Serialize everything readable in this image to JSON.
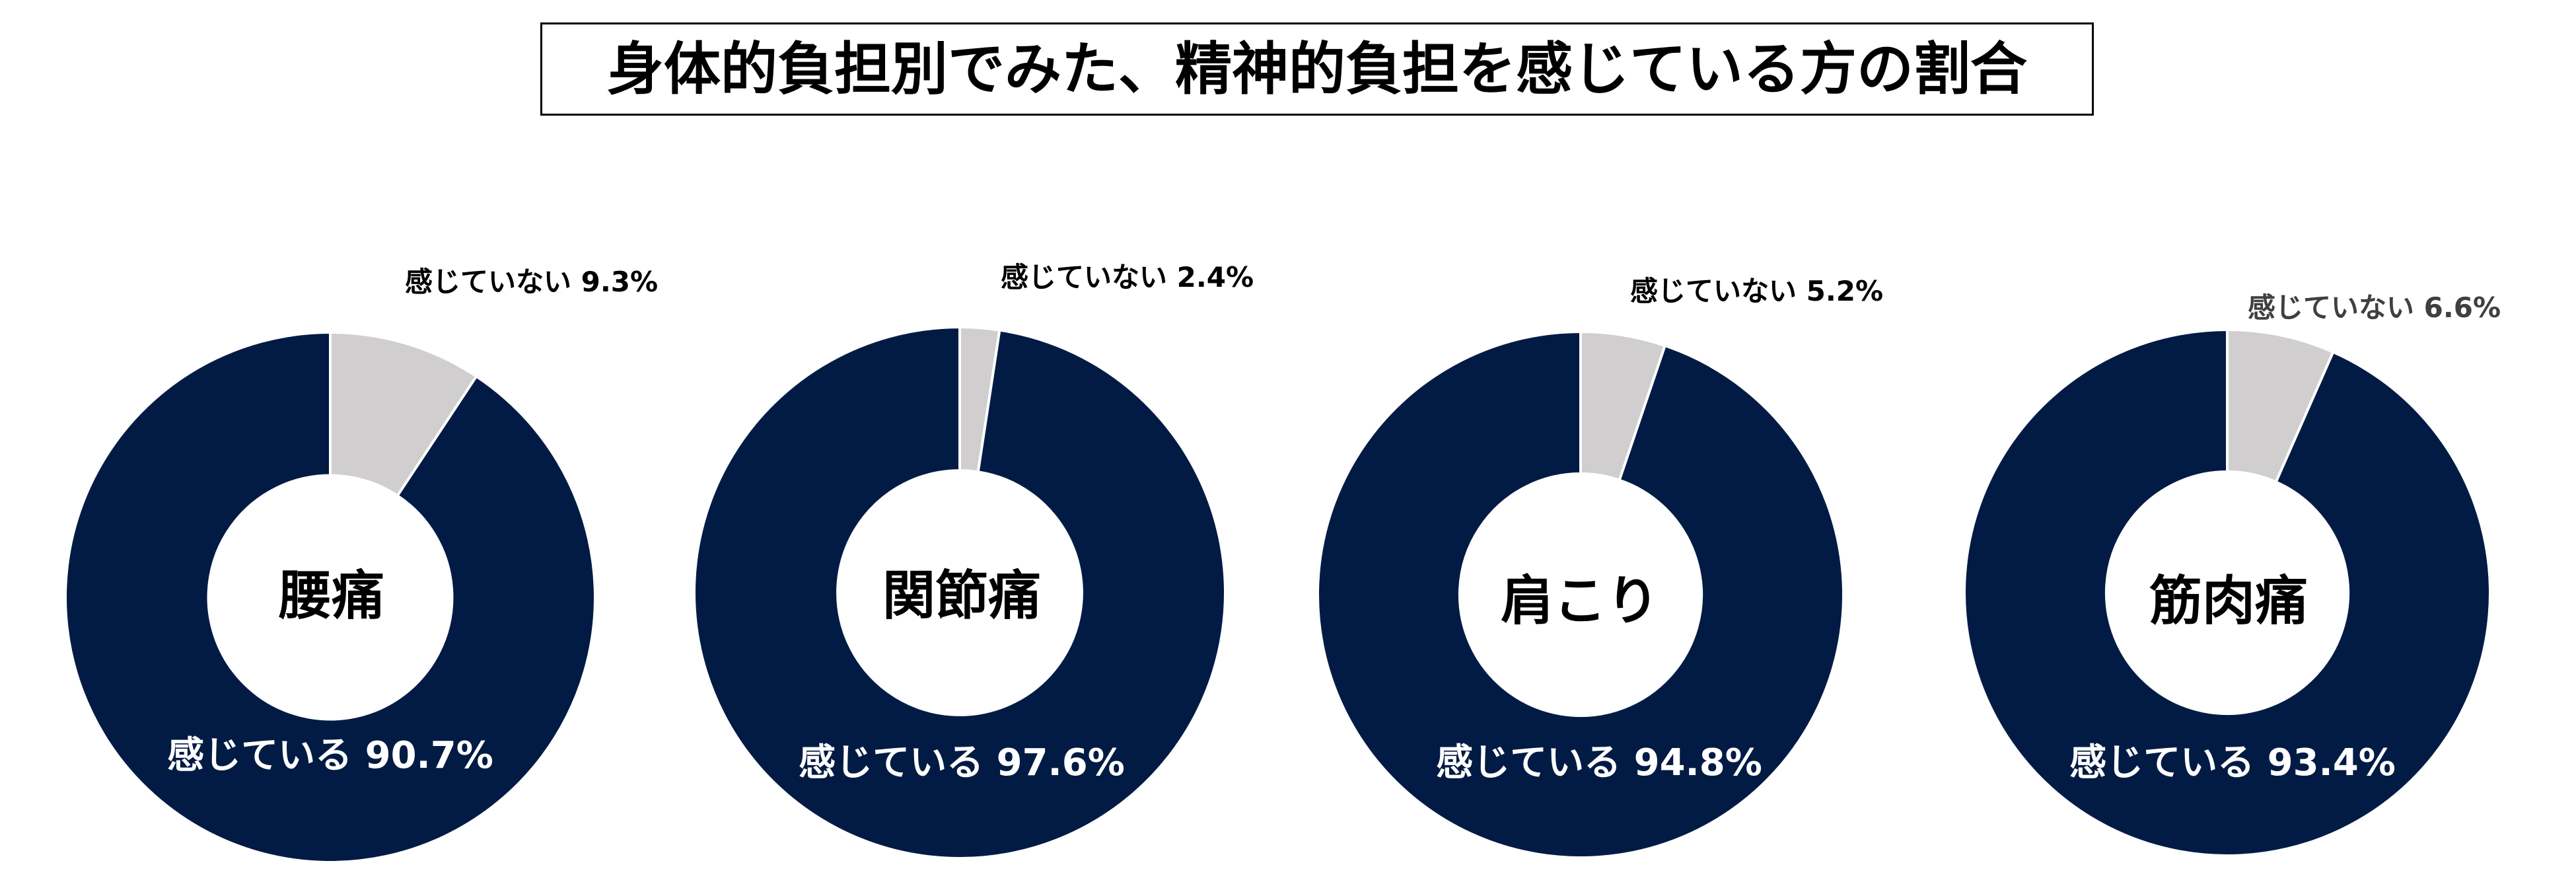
{
  "title": "身体的負担別でみた、精神的負担を感じている方の割合",
  "chart_data": [
    {
      "type": "pie",
      "hole": 0.46,
      "title": "腰痛",
      "categories": [
        "感じていない",
        "感じている"
      ],
      "values": [
        9.3,
        90.7
      ],
      "labels": [
        "感じていない 9.3%",
        "感じている 90.7%"
      ],
      "colors": [
        "#d0cece",
        "#021b44"
      ],
      "label_colors": [
        "#000000",
        "#ffffff"
      ]
    },
    {
      "type": "pie",
      "hole": 0.46,
      "title": "関節痛",
      "categories": [
        "感じていない",
        "感じている"
      ],
      "values": [
        2.4,
        97.6
      ],
      "labels": [
        "感じていない 2.4%",
        "感じている 97.6%"
      ],
      "colors": [
        "#d0cece",
        "#021b44"
      ],
      "label_colors": [
        "#000000",
        "#ffffff"
      ]
    },
    {
      "type": "pie",
      "hole": 0.46,
      "title": "肩こり",
      "categories": [
        "感じていない",
        "感じている"
      ],
      "values": [
        5.2,
        94.8
      ],
      "labels": [
        "感じていない 5.2%",
        "感じている 94.8%"
      ],
      "colors": [
        "#d0cece",
        "#021b44"
      ],
      "label_colors": [
        "#000000",
        "#ffffff"
      ]
    },
    {
      "type": "pie",
      "hole": 0.46,
      "title": "筋肉痛",
      "categories": [
        "感じていない",
        "感じている"
      ],
      "values": [
        6.6,
        93.4
      ],
      "labels": [
        "感じていない 6.6%",
        "感じている 93.4%"
      ],
      "colors": [
        "#d0cece",
        "#021b44"
      ],
      "label_colors": [
        "#404040",
        "#ffffff"
      ]
    }
  ]
}
